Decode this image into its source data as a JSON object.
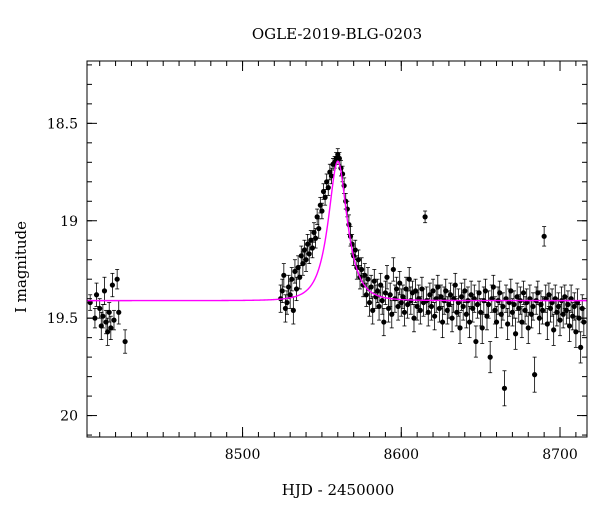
{
  "chart_data": {
    "type": "scatter",
    "title": "OGLE-2019-BLG-0203",
    "xlabel": "HJD - 2450000",
    "ylabel": "I magnitude",
    "xlim": [
      8402,
      8717
    ],
    "ylim": [
      20.11,
      18.18
    ],
    "y_axis_inverted": true,
    "x_ticks": [
      {
        "value": 8500,
        "label": "8500"
      },
      {
        "value": 8600,
        "label": "8600"
      },
      {
        "value": 8700,
        "label": "8700"
      }
    ],
    "y_ticks": [
      {
        "value": 18.5,
        "label": "18.5"
      },
      {
        "value": 19,
        "label": "19"
      },
      {
        "value": 19.5,
        "label": "19.5"
      },
      {
        "value": 20,
        "label": "20"
      }
    ],
    "x_minor_step": 10,
    "y_minor_step": 0.1,
    "grid": false,
    "legend": "none",
    "colors": {
      "points": "#000000",
      "model": "#ff00ff"
    },
    "model": {
      "name": "",
      "baseline_mag": 19.41,
      "peak_time": 8560,
      "peak_mag": 18.69,
      "tE_days": 9.5
    },
    "series": [
      {
        "name": "",
        "points": [
          [
            8404,
            19.42,
            0.04
          ],
          [
            8407,
            19.5,
            0.05
          ],
          [
            8408,
            19.38,
            0.06
          ],
          [
            8410,
            19.45,
            0.05
          ],
          [
            8411,
            19.54,
            0.07
          ],
          [
            8412,
            19.49,
            0.06
          ],
          [
            8413,
            19.36,
            0.07
          ],
          [
            8414,
            19.52,
            0.06
          ],
          [
            8415,
            19.57,
            0.07
          ],
          [
            8416,
            19.47,
            0.05
          ],
          [
            8417,
            19.55,
            0.06
          ],
          [
            8418,
            19.33,
            0.06
          ],
          [
            8419,
            19.51,
            0.05
          ],
          [
            8421,
            19.3,
            0.05
          ],
          [
            8422,
            19.47,
            0.06
          ],
          [
            8426,
            19.62,
            0.06
          ],
          [
            8524,
            19.4,
            0.07
          ],
          [
            8525,
            19.36,
            0.06
          ],
          [
            8526,
            19.28,
            0.06
          ],
          [
            8527,
            19.45,
            0.07
          ],
          [
            8528,
            19.42,
            0.06
          ],
          [
            8529,
            19.34,
            0.06
          ],
          [
            8530,
            19.38,
            0.07
          ],
          [
            8531,
            19.3,
            0.06
          ],
          [
            8532,
            19.46,
            0.07
          ],
          [
            8533,
            19.26,
            0.06
          ],
          [
            8534,
            19.35,
            0.06
          ],
          [
            8535,
            19.24,
            0.06
          ],
          [
            8536,
            19.29,
            0.06
          ],
          [
            8537,
            19.18,
            0.05
          ],
          [
            8538,
            19.22,
            0.06
          ],
          [
            8539,
            19.15,
            0.05
          ],
          [
            8540,
            19.2,
            0.06
          ],
          [
            8541,
            19.12,
            0.05
          ],
          [
            8542,
            19.17,
            0.05
          ],
          [
            8543,
            19.1,
            0.05
          ],
          [
            8544,
            19.14,
            0.05
          ],
          [
            8545,
            19.06,
            0.05
          ],
          [
            8546,
            19.09,
            0.05
          ],
          [
            8547,
            18.98,
            0.04
          ],
          [
            8548,
            19.04,
            0.05
          ],
          [
            8549,
            18.92,
            0.04
          ],
          [
            8550,
            18.95,
            0.04
          ],
          [
            8551,
            18.85,
            0.04
          ],
          [
            8552,
            18.88,
            0.04
          ],
          [
            8553,
            18.8,
            0.04
          ],
          [
            8554,
            18.83,
            0.04
          ],
          [
            8555,
            18.75,
            0.04
          ],
          [
            8556,
            18.77,
            0.04
          ],
          [
            8557,
            18.71,
            0.03
          ],
          [
            8558,
            18.7,
            0.03
          ],
          [
            8559,
            18.68,
            0.03
          ],
          [
            8560,
            18.66,
            0.03
          ],
          [
            8561,
            18.68,
            0.03
          ],
          [
            8562,
            18.73,
            0.04
          ],
          [
            8563,
            18.76,
            0.04
          ],
          [
            8564,
            18.82,
            0.04
          ],
          [
            8565,
            18.9,
            0.04
          ],
          [
            8566,
            18.94,
            0.04
          ],
          [
            8567,
            19.02,
            0.05
          ],
          [
            8568,
            19.08,
            0.05
          ],
          [
            8569,
            19.12,
            0.05
          ],
          [
            8570,
            19.18,
            0.05
          ],
          [
            8571,
            19.15,
            0.05
          ],
          [
            8572,
            19.24,
            0.06
          ],
          [
            8573,
            19.2,
            0.05
          ],
          [
            8574,
            19.29,
            0.06
          ],
          [
            8575,
            19.25,
            0.06
          ],
          [
            8576,
            19.33,
            0.06
          ],
          [
            8577,
            19.28,
            0.06
          ],
          [
            8578,
            19.38,
            0.06
          ],
          [
            8579,
            19.3,
            0.06
          ],
          [
            8580,
            19.42,
            0.07
          ],
          [
            8581,
            19.34,
            0.06
          ],
          [
            8582,
            19.46,
            0.07
          ],
          [
            8583,
            19.31,
            0.06
          ],
          [
            8584,
            19.39,
            0.06
          ],
          [
            8585,
            19.36,
            0.06
          ],
          [
            8586,
            19.44,
            0.07
          ],
          [
            8587,
            19.33,
            0.06
          ],
          [
            8588,
            19.41,
            0.07
          ],
          [
            8589,
            19.52,
            0.07
          ],
          [
            8590,
            19.37,
            0.06
          ],
          [
            8591,
            19.29,
            0.06
          ],
          [
            8592,
            19.45,
            0.07
          ],
          [
            8593,
            19.38,
            0.06
          ],
          [
            8594,
            19.48,
            0.07
          ],
          [
            8595,
            19.25,
            0.06
          ],
          [
            8596,
            19.4,
            0.07
          ],
          [
            8597,
            19.35,
            0.06
          ],
          [
            8598,
            19.44,
            0.07
          ],
          [
            8599,
            19.32,
            0.06
          ],
          [
            8600,
            19.42,
            0.07
          ],
          [
            8601,
            19.39,
            0.06
          ],
          [
            8602,
            19.47,
            0.07
          ],
          [
            8603,
            19.35,
            0.06
          ],
          [
            8604,
            19.43,
            0.07
          ],
          [
            8605,
            19.3,
            0.06
          ],
          [
            8606,
            19.41,
            0.07
          ],
          [
            8607,
            19.37,
            0.06
          ],
          [
            8608,
            19.5,
            0.07
          ],
          [
            8609,
            19.36,
            0.06
          ],
          [
            8610,
            19.44,
            0.07
          ],
          [
            8611,
            19.4,
            0.07
          ],
          [
            8612,
            19.46,
            0.07
          ],
          [
            8613,
            19.35,
            0.06
          ],
          [
            8614,
            19.42,
            0.07
          ],
          [
            8615,
            18.98,
            0.03
          ],
          [
            8616,
            19.41,
            0.07
          ],
          [
            8617,
            19.47,
            0.07
          ],
          [
            8618,
            19.38,
            0.06
          ],
          [
            8619,
            19.44,
            0.07
          ],
          [
            8620,
            19.36,
            0.06
          ],
          [
            8621,
            19.49,
            0.07
          ],
          [
            8622,
            19.4,
            0.07
          ],
          [
            8623,
            19.34,
            0.06
          ],
          [
            8624,
            19.45,
            0.07
          ],
          [
            8625,
            19.39,
            0.06
          ],
          [
            8626,
            19.52,
            0.08
          ],
          [
            8627,
            19.41,
            0.07
          ],
          [
            8628,
            19.36,
            0.06
          ],
          [
            8629,
            19.46,
            0.07
          ],
          [
            8630,
            19.43,
            0.07
          ],
          [
            8631,
            19.38,
            0.06
          ],
          [
            8632,
            19.5,
            0.07
          ],
          [
            8633,
            19.4,
            0.07
          ],
          [
            8634,
            19.33,
            0.06
          ],
          [
            8635,
            19.47,
            0.07
          ],
          [
            8636,
            19.42,
            0.07
          ],
          [
            8637,
            19.55,
            0.08
          ],
          [
            8638,
            19.39,
            0.07
          ],
          [
            8639,
            19.44,
            0.07
          ],
          [
            8640,
            19.36,
            0.06
          ],
          [
            8641,
            19.48,
            0.07
          ],
          [
            8642,
            19.41,
            0.07
          ],
          [
            8643,
            19.52,
            0.08
          ],
          [
            8644,
            19.38,
            0.07
          ],
          [
            8645,
            19.45,
            0.07
          ],
          [
            8646,
            19.4,
            0.07
          ],
          [
            8647,
            19.62,
            0.08
          ],
          [
            8648,
            19.43,
            0.07
          ],
          [
            8649,
            19.37,
            0.06
          ],
          [
            8650,
            19.47,
            0.07
          ],
          [
            8651,
            19.55,
            0.08
          ],
          [
            8652,
            19.41,
            0.07
          ],
          [
            8653,
            19.36,
            0.06
          ],
          [
            8654,
            19.49,
            0.07
          ],
          [
            8655,
            19.43,
            0.07
          ],
          [
            8656,
            19.7,
            0.08
          ],
          [
            8657,
            19.4,
            0.07
          ],
          [
            8658,
            19.34,
            0.06
          ],
          [
            8659,
            19.46,
            0.07
          ],
          [
            8660,
            19.52,
            0.08
          ],
          [
            8661,
            19.41,
            0.07
          ],
          [
            8662,
            19.37,
            0.06
          ],
          [
            8663,
            19.48,
            0.07
          ],
          [
            8664,
            19.44,
            0.07
          ],
          [
            8665,
            19.86,
            0.09
          ],
          [
            8666,
            19.4,
            0.07
          ],
          [
            8667,
            19.53,
            0.08
          ],
          [
            8668,
            19.42,
            0.07
          ],
          [
            8669,
            19.36,
            0.06
          ],
          [
            8670,
            19.47,
            0.07
          ],
          [
            8671,
            19.43,
            0.07
          ],
          [
            8672,
            19.58,
            0.08
          ],
          [
            8673,
            19.39,
            0.07
          ],
          [
            8674,
            19.45,
            0.07
          ],
          [
            8675,
            19.41,
            0.07
          ],
          [
            8676,
            19.52,
            0.08
          ],
          [
            8677,
            19.37,
            0.06
          ],
          [
            8678,
            19.46,
            0.07
          ],
          [
            8679,
            19.42,
            0.07
          ],
          [
            8680,
            19.55,
            0.08
          ],
          [
            8681,
            19.4,
            0.07
          ],
          [
            8682,
            19.48,
            0.07
          ],
          [
            8683,
            19.44,
            0.07
          ],
          [
            8684,
            19.79,
            0.09
          ],
          [
            8685,
            19.41,
            0.07
          ],
          [
            8686,
            19.37,
            0.06
          ],
          [
            8687,
            19.5,
            0.08
          ],
          [
            8688,
            19.43,
            0.07
          ],
          [
            8689,
            19.46,
            0.07
          ],
          [
            8690,
            19.08,
            0.05
          ],
          [
            8691,
            19.4,
            0.07
          ],
          [
            8692,
            19.53,
            0.08
          ],
          [
            8693,
            19.38,
            0.06
          ],
          [
            8694,
            19.45,
            0.07
          ],
          [
            8695,
            19.42,
            0.07
          ],
          [
            8696,
            19.56,
            0.08
          ],
          [
            8697,
            19.4,
            0.07
          ],
          [
            8698,
            19.47,
            0.07
          ],
          [
            8699,
            19.44,
            0.07
          ],
          [
            8700,
            19.51,
            0.08
          ],
          [
            8701,
            19.41,
            0.07
          ],
          [
            8702,
            19.48,
            0.07
          ],
          [
            8703,
            19.39,
            0.06
          ],
          [
            8704,
            19.46,
            0.07
          ],
          [
            8705,
            19.43,
            0.07
          ],
          [
            8706,
            19.54,
            0.08
          ],
          [
            8707,
            19.4,
            0.07
          ],
          [
            8708,
            19.49,
            0.07
          ],
          [
            8709,
            19.44,
            0.07
          ],
          [
            8710,
            19.57,
            0.08
          ],
          [
            8711,
            19.42,
            0.07
          ],
          [
            8712,
            19.5,
            0.07
          ],
          [
            8713,
            19.65,
            0.08
          ],
          [
            8714,
            19.45,
            0.07
          ],
          [
            8715,
            19.52,
            0.07
          ]
        ]
      }
    ]
  }
}
